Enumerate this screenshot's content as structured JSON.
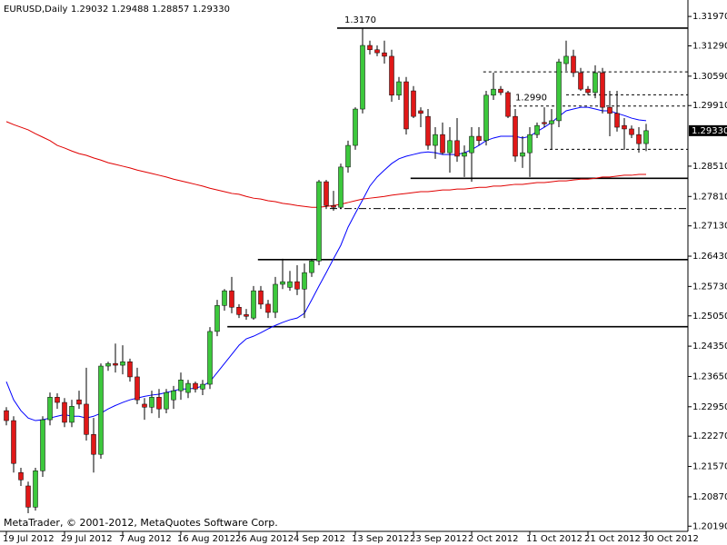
{
  "chart_data": {
    "type": "candlestick",
    "title": "EURUSD,Daily",
    "subtitle": "1.29032 1.29488 1.28857 1.29330",
    "footer": "MetaTrader, © 2001-2012, MetaQuotes Software Corp.",
    "up_color": "#3cc83c",
    "down_color": "#e01818",
    "categories": [
      "19 Jul 2012",
      null,
      null,
      null,
      null,
      null,
      null,
      null,
      "29 Jul 2012",
      null,
      null,
      null,
      null,
      null,
      null,
      null,
      "7 Aug 2012",
      null,
      null,
      null,
      null,
      null,
      null,
      null,
      "16 Aug 2012",
      null,
      null,
      null,
      null,
      null,
      null,
      null,
      "26 Aug 2012",
      null,
      null,
      null,
      null,
      null,
      null,
      null,
      "4 Sep 2012",
      null,
      null,
      null,
      null,
      null,
      null,
      null,
      "13 Sep 2012",
      null,
      null,
      null,
      null,
      null,
      null,
      null,
      "23 Sep 2012",
      null,
      null,
      null,
      null,
      null,
      null,
      null,
      "2 Oct 2012",
      null,
      null,
      null,
      null,
      null,
      null,
      null,
      "11 Oct 2012",
      null,
      null,
      null,
      null,
      null,
      null,
      null,
      "21 Oct 2012",
      null,
      null,
      null,
      null,
      null,
      null,
      null,
      "30 Oct 2012"
    ],
    "open": [
      1.2286,
      1.2263,
      1.2143,
      1.2112,
      1.2063,
      1.2147,
      1.2265,
      1.2317,
      1.2305,
      1.2259,
      1.2311,
      1.2301,
      1.2231,
      1.2185,
      1.2389,
      1.2395,
      1.2391,
      1.2399,
      1.2364,
      1.2301,
      1.2294,
      1.2317,
      1.229,
      1.2311,
      1.2332,
      1.2328,
      1.2349,
      1.2336,
      1.2347,
      1.2469,
      1.2529,
      1.2563,
      1.2525,
      1.2508,
      1.25,
      1.2563,
      1.2532,
      1.2513,
      1.2578,
      1.2571,
      1.2584,
      1.2567,
      1.2605,
      1.2632,
      1.2815,
      1.276,
      1.2756,
      1.2849,
      1.2899,
      1.2983,
      1.313,
      1.312,
      1.3113,
      1.3105,
      1.3015,
      1.3046,
      1.3025,
      1.2979,
      1.2966,
      1.2899,
      1.2924,
      1.2882,
      1.291,
      1.2874,
      1.2882,
      1.292,
      1.291,
      1.3015,
      1.3029,
      1.3021,
      1.2966,
      1.2874,
      1.2882,
      1.2924,
      1.2952,
      1.2949,
      1.2956,
      1.3088,
      1.3105,
      1.3067,
      1.3029,
      1.3021,
      1.3067,
      1.2987,
      1.2973,
      1.2945,
      1.2937,
      1.2924,
      1.29032
    ],
    "high": [
      1.2294,
      1.2273,
      1.2154,
      1.2122,
      1.2154,
      1.2273,
      1.2328,
      1.2326,
      1.2315,
      1.2311,
      1.2332,
      1.2385,
      1.2269,
      1.2395,
      1.2399,
      1.2441,
      1.2437,
      1.2406,
      1.2385,
      1.2315,
      1.2332,
      1.2336,
      1.2336,
      1.2343,
      1.2374,
      1.2357,
      1.2353,
      1.2357,
      1.2479,
      1.2542,
      1.2567,
      1.2595,
      1.2532,
      1.2521,
      1.2574,
      1.2574,
      1.2542,
      1.2595,
      1.2637,
      1.2609,
      1.2622,
      1.2626,
      1.2637,
      1.2819,
      1.2819,
      1.2794,
      1.2857,
      1.291,
      1.2987,
      1.317,
      1.3141,
      1.313,
      1.3141,
      1.312,
      1.3057,
      1.3057,
      1.3036,
      1.2987,
      1.2983,
      1.2941,
      1.2952,
      1.2941,
      1.2962,
      1.2899,
      1.2941,
      1.2941,
      1.3025,
      1.3067,
      1.3036,
      1.3025,
      1.2983,
      1.292,
      1.2941,
      1.2952,
      1.2987,
      1.2983,
      1.3099,
      1.3141,
      1.312,
      1.3078,
      1.3036,
      1.3084,
      1.3078,
      1.3025,
      1.3025,
      1.2962,
      1.2945,
      1.2941,
      1.29488
    ],
    "low": [
      1.2252,
      1.2143,
      1.2112,
      1.2049,
      1.2055,
      1.2133,
      1.2252,
      1.229,
      1.2248,
      1.2248,
      1.229,
      1.2217,
      1.2143,
      1.2175,
      1.2378,
      1.2374,
      1.237,
      1.2353,
      1.2301,
      1.2265,
      1.228,
      1.2269,
      1.228,
      1.229,
      1.2311,
      1.2315,
      1.2328,
      1.2322,
      1.2336,
      1.2458,
      1.2517,
      1.2511,
      1.25,
      1.2496,
      1.2496,
      1.2521,
      1.25,
      1.25,
      1.2567,
      1.2563,
      1.2553,
      1.25,
      1.2595,
      1.2622,
      1.2752,
      1.2748,
      1.2752,
      1.2836,
      1.2889,
      1.2973,
      1.3109,
      1.3105,
      1.3088,
      1.3,
      1.3004,
      1.2924,
      1.2962,
      1.2941,
      1.2889,
      1.2868,
      1.2878,
      1.2836,
      1.2861,
      1.2826,
      1.2815,
      1.2899,
      1.2899,
      1.3004,
      1.3015,
      1.2962,
      1.2861,
      1.2847,
      1.2826,
      1.2916,
      1.2941,
      1.2889,
      1.2941,
      1.3071,
      1.3057,
      1.3025,
      1.3015,
      1.3008,
      1.2973,
      1.292,
      1.2931,
      1.2889,
      1.2916,
      1.2882,
      1.28857
    ],
    "close": [
      1.2263,
      1.2164,
      1.2126,
      1.2063,
      1.2147,
      1.2265,
      1.2317,
      1.2305,
      1.2259,
      1.2296,
      1.2301,
      1.2231,
      1.2185,
      1.2389,
      1.2395,
      1.2391,
      1.2399,
      1.2364,
      1.2311,
      1.2294,
      1.2317,
      1.229,
      1.2328,
      1.2332,
      1.2357,
      1.2349,
      1.2336,
      1.2347,
      1.2469,
      1.2529,
      1.2563,
      1.2525,
      1.2508,
      1.2504,
      1.2563,
      1.2532,
      1.2513,
      1.2578,
      1.2584,
      1.2584,
      1.2567,
      1.2605,
      1.2632,
      1.2815,
      1.276,
      1.2756,
      1.2849,
      1.2899,
      1.2983,
      1.313,
      1.312,
      1.3113,
      1.3105,
      1.3015,
      1.3046,
      1.2937,
      1.2966,
      1.2973,
      1.2899,
      1.2924,
      1.2882,
      1.291,
      1.2874,
      1.2882,
      1.292,
      1.291,
      1.3015,
      1.3029,
      1.3021,
      1.2966,
      1.2874,
      1.2882,
      1.2924,
      1.2945,
      1.2949,
      1.2956,
      1.3092,
      1.3105,
      1.3067,
      1.3029,
      1.3021,
      1.3067,
      1.2987,
      1.2973,
      1.2941,
      1.2937,
      1.2924,
      1.2903,
      1.2933
    ],
    "overlays": [
      {
        "color": "#0000ff",
        "values": [
          1.2353,
          1.2311,
          1.2286,
          1.2269,
          1.2263,
          1.2265,
          1.2269,
          1.2273,
          1.2277,
          1.2273,
          1.2273,
          1.2269,
          1.2273,
          1.228,
          1.229,
          1.2298,
          1.2305,
          1.2311,
          1.2315,
          1.2319,
          1.2322,
          1.2324,
          1.2328,
          1.2332,
          1.2336,
          1.2336,
          1.2338,
          1.2343,
          1.2353,
          1.2374,
          1.2395,
          1.2416,
          1.2437,
          1.2452,
          1.2458,
          1.2466,
          1.2475,
          1.2483,
          1.249,
          1.2496,
          1.25,
          1.2511,
          1.2542,
          1.2574,
          1.2605,
          1.2637,
          1.2668,
          1.271,
          1.2742,
          1.2773,
          1.2805,
          1.2826,
          1.2842,
          1.2857,
          1.2868,
          1.2874,
          1.2878,
          1.2882,
          1.2884,
          1.2882,
          1.2878,
          1.2878,
          1.2878,
          1.2882,
          1.2889,
          1.2899,
          1.291,
          1.2916,
          1.292,
          1.292,
          1.292,
          1.2916,
          1.292,
          1.2931,
          1.2941,
          1.2952,
          1.2966,
          1.2979,
          1.2983,
          1.2987,
          1.2987,
          1.2983,
          1.2979,
          1.2979,
          1.2973,
          1.2968,
          1.2962,
          1.2958,
          1.2956
        ]
      },
      {
        "color": "#e00000",
        "values": [
          1.2954,
          1.2947,
          1.2941,
          1.2935,
          1.2926,
          1.2918,
          1.291,
          1.2899,
          1.2893,
          1.2886,
          1.288,
          1.2876,
          1.287,
          1.2865,
          1.2859,
          1.2855,
          1.2851,
          1.2847,
          1.2842,
          1.2838,
          1.2834,
          1.283,
          1.2826,
          1.2821,
          1.2817,
          1.2813,
          1.2809,
          1.2805,
          1.28,
          1.2796,
          1.2792,
          1.2788,
          1.2786,
          1.2781,
          1.2777,
          1.2775,
          1.2771,
          1.2769,
          1.2765,
          1.2763,
          1.276,
          1.2758,
          1.2756,
          1.2756,
          1.2758,
          1.276,
          1.2763,
          1.2767,
          1.2771,
          1.2775,
          1.2777,
          1.2779,
          1.2781,
          1.2784,
          1.2786,
          1.2788,
          1.279,
          1.2792,
          1.2792,
          1.2794,
          1.2796,
          1.2796,
          1.2798,
          1.2798,
          1.28,
          1.2802,
          1.2802,
          1.2805,
          1.2805,
          1.2807,
          1.2809,
          1.2809,
          1.2811,
          1.2813,
          1.2813,
          1.2815,
          1.2817,
          1.2817,
          1.2819,
          1.2821,
          1.2821,
          1.2823,
          1.2826,
          1.2826,
          1.2828,
          1.283,
          1.283,
          1.2832,
          1.2832
        ]
      }
    ],
    "levels": [
      {
        "value": 1.317,
        "label": "1.3170",
        "style": "solid"
      },
      {
        "value": 1.3069,
        "style": "dashed"
      },
      {
        "value": 1.3016,
        "style": "dashed"
      },
      {
        "value": 1.299,
        "label": "1.2990",
        "style": "dashed"
      },
      {
        "value": 1.289,
        "style": "dashed"
      },
      {
        "value": 1.2823,
        "style": "solid"
      },
      {
        "value": 1.2753,
        "style": "dash-dot"
      },
      {
        "value": 1.2635,
        "style": "solid"
      },
      {
        "value": 1.248,
        "style": "solid"
      }
    ],
    "last_price": {
      "value": 1.2933,
      "label": "1.29330"
    },
    "ylim": [
      1.2007,
      1.3235
    ],
    "yticks": [
      {
        "value": 1.3197,
        "label": "1.31970"
      },
      {
        "value": 1.3129,
        "label": "1.31290"
      },
      {
        "value": 1.3059,
        "label": "1.30590"
      },
      {
        "value": 1.2991,
        "label": "1.29910"
      },
      {
        "value": 1.2851,
        "label": "1.28510"
      },
      {
        "value": 1.2781,
        "label": "1.27810"
      },
      {
        "value": 1.2713,
        "label": "1.27130"
      },
      {
        "value": 1.2643,
        "label": "1.26430"
      },
      {
        "value": 1.2573,
        "label": "1.25730"
      },
      {
        "value": 1.2505,
        "label": "1.25050"
      },
      {
        "value": 1.2435,
        "label": "1.24350"
      },
      {
        "value": 1.2365,
        "label": "1.23650"
      },
      {
        "value": 1.2295,
        "label": "1.22950"
      },
      {
        "value": 1.2227,
        "label": "1.22270"
      },
      {
        "value": 1.2157,
        "label": "1.21570"
      },
      {
        "value": 1.2087,
        "label": "1.20870"
      },
      {
        "value": 1.2019,
        "label": "1.20190"
      }
    ],
    "grid": false
  }
}
